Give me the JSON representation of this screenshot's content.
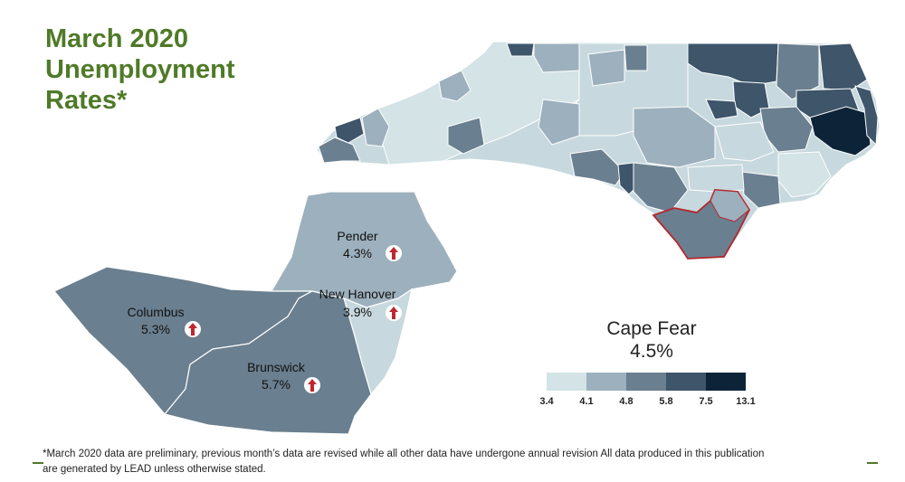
{
  "title": {
    "line1": "March 2020",
    "line2": "Unemployment",
    "line3": "Rates*"
  },
  "region": {
    "name": "Cape Fear",
    "rate": "4.5%"
  },
  "counties": [
    {
      "name": "Pender",
      "rate": "4.3%",
      "direction": "up"
    },
    {
      "name": "New Hanover",
      "rate": "3.9%",
      "direction": "up"
    },
    {
      "name": "Columbus",
      "rate": "5.3%",
      "direction": "up"
    },
    {
      "name": "Brunswick",
      "rate": "5.7%",
      "direction": "up"
    }
  ],
  "legend": {
    "breaks": [
      "3.4",
      "4.1",
      "4.8",
      "5.8",
      "7.5",
      "13.1"
    ],
    "colors": [
      "#d3e3e6",
      "#9db0bd",
      "#6a7f8f",
      "#3e556a",
      "#0d2438"
    ]
  },
  "colors": {
    "title": "#4f7a28",
    "arrow": "#c0262f",
    "highlight_outline": "#b5262e"
  },
  "footnote": {
    "line1": "*March 2020 data are preliminary, previous month’s data are revised while all other data have undergone annual revision All data produced in this publication",
    "line2": "are generated by LEAD unless otherwise stated."
  }
}
